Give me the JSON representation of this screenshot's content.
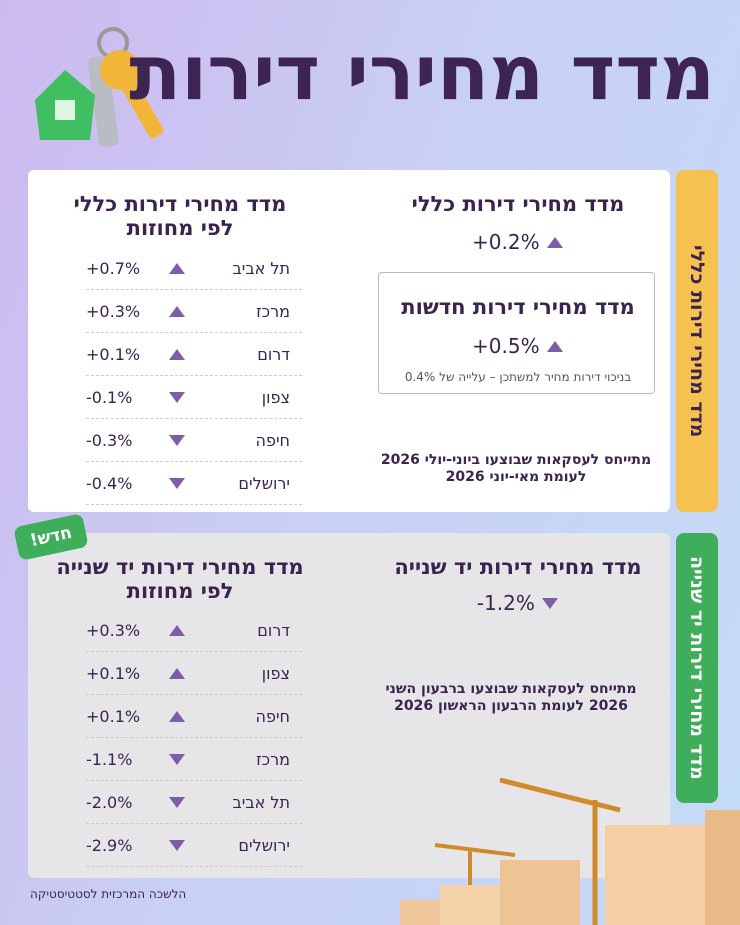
{
  "header": {
    "title": "מדד מחירי דירות"
  },
  "general": {
    "side_label": "מדד מחירי דירות כללי",
    "summary": {
      "title": "מדד מחירי דירות כללי",
      "value": "+0.2%"
    },
    "new_homes": {
      "title": "מדד מחירי דירות חדשות",
      "value": "+0.5%",
      "note": "בניכוי דירות מחיר למשתכן – עלייה של 0.4%"
    },
    "footnote": [
      "מתייחס לעסקאות שבוצעו ביוני-יולי 2026",
      "לעומת מאי-יוני 2026"
    ],
    "districts": {
      "title": [
        "מדד מחירי דירות כללי",
        "לפי מחוזות"
      ],
      "rows": [
        {
          "name": "תל אביב",
          "value": "+0.7%"
        },
        {
          "name": "מרכז",
          "value": "+0.3%"
        },
        {
          "name": "דרום",
          "value": "+0.1%"
        },
        {
          "name": "צפון",
          "value": "-0.1%"
        },
        {
          "name": "חיפה",
          "value": "-0.3%"
        },
        {
          "name": "ירושלים",
          "value": "-0.4%"
        }
      ]
    }
  },
  "second_hand": {
    "side_label": "מדד מחירי דירות יד שנייה",
    "badge": "חדש!",
    "summary": {
      "title": "מדד מחירי דירות יד שנייה",
      "value": "-1.2%"
    },
    "footnote": [
      "מתייחס לעסקאות שבוצעו ברבעון השני",
      "2026 לעומת הרבעון הראשון 2026"
    ],
    "districts": {
      "title": [
        "מדד מחירי דירות יד שנייה",
        "לפי מחוזות"
      ],
      "rows": [
        {
          "name": "דרום",
          "value": "+0.3%"
        },
        {
          "name": "צפון",
          "value": "+0.1%"
        },
        {
          "name": "חיפה",
          "value": "+0.1%"
        },
        {
          "name": "מרכז",
          "value": "-1.1%"
        },
        {
          "name": "תל אביב",
          "value": "-2.0%"
        },
        {
          "name": "ירושלים",
          "value": "-2.9%"
        }
      ]
    }
  },
  "source": "הלשכה המרכזית לסטטיסטיקה"
}
